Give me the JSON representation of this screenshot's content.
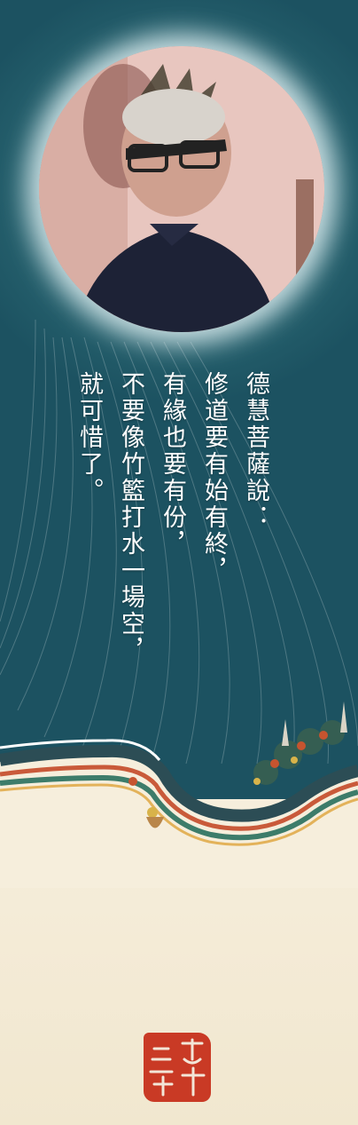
{
  "poem": {
    "lines": [
      "德慧菩薩說：",
      "修道要有始有終，",
      "有緣也要有份，",
      "不要像竹籃打水一場空，",
      "就可惜了。"
    ]
  },
  "colors": {
    "sky": "#245e6b",
    "glow": "#e1f0f2",
    "paper": "#f4ecd6",
    "seal": "#c93a25"
  },
  "images": {
    "portrait": "portrait-photo",
    "roof": "temple-roof-ridge",
    "seal": "red-seal-stamp"
  }
}
